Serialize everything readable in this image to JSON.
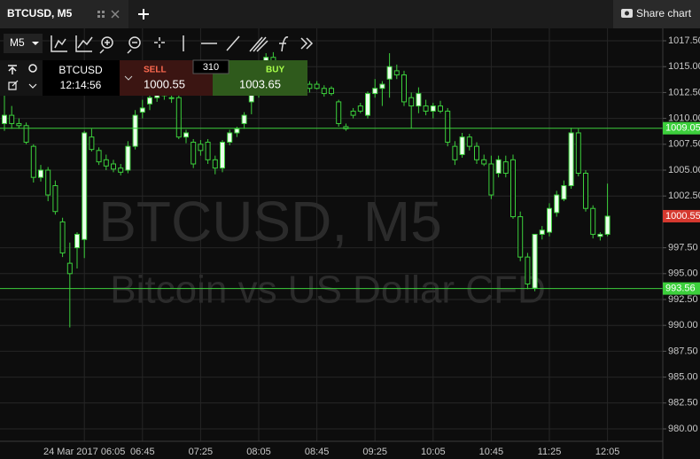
{
  "header": {
    "tab_title": "BTCUSD, M5",
    "share": "Share chart"
  },
  "toolbar": {
    "timeframe": "M5"
  },
  "panel": {
    "symbol": "BTCUSD",
    "time": "12:14:56",
    "sell_label": "SELL",
    "sell_price": "1000.55",
    "spread": "310",
    "buy_label": "BUY",
    "buy_price": "1003.65"
  },
  "chart_data": {
    "type": "candlestick",
    "watermark_title": "BTCUSD, M5",
    "watermark_subtitle": "Bitcoin vs US Dollar CFD",
    "up_color": "#eaffea",
    "down_color": "#0b0b0b",
    "wick_color": "#3ccf3c",
    "categories": [
      null,
      null,
      null,
      null,
      null,
      null,
      null,
      null,
      null,
      null,
      null,
      "24 Mar 2017 06:05",
      null,
      null,
      null,
      null,
      null,
      null,
      null,
      "06:45",
      null,
      null,
      null,
      null,
      null,
      null,
      null,
      "07:25",
      null,
      null,
      null,
      null,
      null,
      null,
      null,
      "08:05",
      null,
      null,
      null,
      null,
      null,
      null,
      null,
      "08:45",
      null,
      null,
      null,
      null,
      null,
      null,
      null,
      "09:25",
      null,
      null,
      null,
      null,
      null,
      null,
      null,
      "10:05",
      null,
      null,
      null,
      null,
      null,
      null,
      null,
      "10:45",
      null,
      null,
      null,
      null,
      null,
      null,
      null,
      "11:25",
      null,
      null,
      null,
      null,
      null,
      null,
      null,
      "12:05"
    ],
    "open": [
      1009.5,
      1010.3,
      1009.5,
      1009.3,
      1007.3,
      1004.3,
      1005.0,
      1003.5,
      1000.0,
      996.0,
      997.5,
      998.3,
      1008.2,
      1006.9,
      1006.0,
      1005.6,
      1005.2,
      1005.0,
      1007.3,
      1010.6,
      1011.4,
      1012.0,
      1012.8,
      1012.0,
      1012.0,
      1008.2,
      1007.7,
      1007.5,
      1007.7,
      1006.0,
      1005.2,
      1007.7,
      1008.6,
      1009.5,
      1011.6,
      1012.4,
      1015.0,
      1015.9,
      1015.2,
      1014.4,
      1013.9,
      1013.5,
      1013.3,
      1013.3,
      1012.9,
      1012.9,
      1011.6,
      1009.2,
      1010.7,
      1011.2,
      1010.3,
      1012.4,
      1012.9,
      1013.8,
      1014.6,
      1014.2,
      1012.0,
      1011.2,
      1011.2,
      1010.7,
      1011.2,
      1010.7,
      1007.3,
      1006.5,
      1008.2,
      1007.3,
      1006.0,
      1005.6,
      1004.7,
      1005.8,
      1006.0,
      1000.5,
      996.6,
      993.6,
      998.8,
      999.0,
      1000.9,
      1002.2,
      1003.5,
      1008.6,
      1004.7,
      1001.3,
      998.6,
      998.8
    ],
    "high": [
      1012.2,
      1011.2,
      1010.0,
      1009.6,
      1007.5,
      1005.5,
      1005.3,
      1004.0,
      1000.4,
      998.0,
      999.0,
      1008.8,
      1009.0,
      1007.2,
      1006.5,
      1006.0,
      1005.6,
      1007.8,
      1010.8,
      1011.8,
      1012.3,
      1013.8,
      1013.4,
      1012.6,
      1012.3,
      1008.9,
      1008.0,
      1007.9,
      1008.0,
      1006.4,
      1007.9,
      1008.9,
      1009.2,
      1010.6,
      1012.4,
      1015.2,
      1016.3,
      1016.4,
      1015.6,
      1014.8,
      1014.3,
      1013.9,
      1013.6,
      1013.6,
      1013.2,
      1013.1,
      1011.8,
      1009.5,
      1011.0,
      1011.5,
      1012.6,
      1013.8,
      1013.6,
      1016.3,
      1015.2,
      1014.6,
      1012.5,
      1013.0,
      1011.8,
      1011.5,
      1011.7,
      1011.0,
      1007.8,
      1008.6,
      1008.5,
      1007.7,
      1006.5,
      1006.4,
      1006.4,
      1006.4,
      1006.5,
      1001.0,
      997.0,
      998.8,
      999.6,
      1001.8,
      1003.0,
      1004.0,
      1009.1,
      1009.0,
      1005.0,
      1001.6,
      999.0,
      1003.7
    ],
    "low": [
      1008.8,
      1009.0,
      1009.0,
      1007.5,
      1003.8,
      1003.9,
      1002.0,
      1000.7,
      996.6,
      989.8,
      995.5,
      996.5,
      1006.8,
      1005.5,
      1005.0,
      1004.8,
      1004.5,
      1004.7,
      1007.0,
      1010.0,
      1010.8,
      1011.6,
      1011.8,
      1011.5,
      1008.0,
      1007.6,
      1005.2,
      1006.4,
      1005.6,
      1004.6,
      1004.8,
      1007.4,
      1008.2,
      1009.0,
      1010.4,
      1012.0,
      1014.6,
      1014.8,
      1014.0,
      1013.5,
      1013.0,
      1012.9,
      1012.5,
      1012.8,
      1012.1,
      1012.2,
      1009.2,
      1008.8,
      1010.0,
      1010.5,
      1010.0,
      1012.0,
      1011.2,
      1012.0,
      1013.8,
      1011.2,
      1009.0,
      1010.5,
      1010.3,
      1010.0,
      1010.5,
      1007.3,
      1005.5,
      1006.2,
      1006.9,
      1005.6,
      1005.4,
      1002.2,
      1004.3,
      1004.3,
      1000.3,
      996.2,
      993.5,
      993.3,
      998.3,
      998.6,
      1000.5,
      1002.0,
      1003.2,
      1004.4,
      1001.0,
      998.4,
      998.2,
      998.6
    ],
    "close": [
      1010.3,
      1009.5,
      1009.3,
      1007.7,
      1004.3,
      1005.0,
      1002.6,
      1001.0,
      997.0,
      995.0,
      998.8,
      1008.6,
      1007.0,
      1005.8,
      1005.4,
      1005.1,
      1004.8,
      1007.3,
      1010.3,
      1011.0,
      1012.0,
      1013.5,
      1012.2,
      1012.0,
      1008.2,
      1008.6,
      1005.6,
      1006.9,
      1006.0,
      1005.2,
      1007.7,
      1008.6,
      1009.0,
      1010.3,
      1012.4,
      1015.0,
      1015.9,
      1015.2,
      1014.4,
      1013.9,
      1013.5,
      1013.3,
      1012.9,
      1012.9,
      1012.4,
      1012.4,
      1009.5,
      1009.0,
      1010.3,
      1010.7,
      1012.4,
      1012.9,
      1013.3,
      1015.0,
      1014.2,
      1011.6,
      1011.2,
      1012.4,
      1010.7,
      1011.2,
      1010.7,
      1007.7,
      1006.0,
      1008.2,
      1007.3,
      1006.0,
      1005.6,
      1002.6,
      1006.0,
      1004.7,
      1000.5,
      996.6,
      994.0,
      998.8,
      999.2,
      1001.3,
      1002.6,
      1003.5,
      1008.6,
      1004.7,
      1001.3,
      998.8,
      998.8,
      1000.55
    ],
    "ylim": [
      978.8,
      1018.7
    ],
    "yticks": [
      {
        "value": 980,
        "label": "980.00"
      },
      {
        "value": 982.5,
        "label": "982.50"
      },
      {
        "value": 985,
        "label": "985.00"
      },
      {
        "value": 987.5,
        "label": "987.50"
      },
      {
        "value": 990,
        "label": "990.00"
      },
      {
        "value": 992.5,
        "label": "992.50"
      },
      {
        "value": 995,
        "label": "995.00"
      },
      {
        "value": 997.5,
        "label": "997.50"
      },
      {
        "value": 1002.5,
        "label": "1002.50"
      },
      {
        "value": 1005,
        "label": "1005.00"
      },
      {
        "value": 1007.5,
        "label": "1007.50"
      },
      {
        "value": 1010,
        "label": "1010.00"
      },
      {
        "value": 1012.5,
        "label": "1012.50"
      },
      {
        "value": 1015,
        "label": "1015.00"
      },
      {
        "value": 1017.5,
        "label": "1017.50"
      }
    ],
    "grid": true,
    "levels": [
      {
        "value": 1009.05,
        "color": "#3ccf3c"
      },
      {
        "value": 993.56,
        "color": "#3ccf3c"
      }
    ],
    "price_line": {
      "value": 1000.55,
      "color": "#d6392f"
    }
  }
}
